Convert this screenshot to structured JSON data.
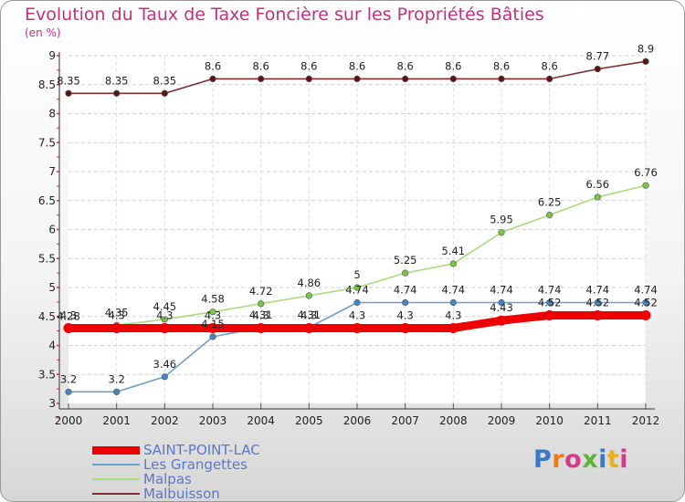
{
  "title": "Evolution du Taux de Taxe Foncière sur les Propriétés Bâties",
  "unit_label": "(en %)",
  "brand": "Proxiti",
  "brand_colors": [
    "#3a78c8",
    "#f07a1a",
    "#d63a8a",
    "#5ab43c",
    "#3a78c8",
    "#e8b020",
    "#d63a8a"
  ],
  "chart_data": {
    "type": "line",
    "title": "Evolution du Taux de Taxe Foncière sur les Propriétés Bâties",
    "ylabel": "(en %)",
    "xlabel": "",
    "x": [
      "2000",
      "2001",
      "2002",
      "2003",
      "2004",
      "2005",
      "2006",
      "2007",
      "2008",
      "2009",
      "2010",
      "2011",
      "2012"
    ],
    "ylim": [
      3,
      9
    ],
    "yticks": [
      "3",
      "3.5",
      "4",
      "4.5",
      "5",
      "5.5",
      "6",
      "6.5",
      "7",
      "7.5",
      "8",
      "8.5",
      "9"
    ],
    "grid": true,
    "series": [
      {
        "name": "SAINT-POINT-LAC",
        "color": "#ee0000",
        "values": [
          4.3,
          4.3,
          4.3,
          4.3,
          4.3,
          4.3,
          4.3,
          4.3,
          4.3,
          4.43,
          4.52,
          4.52,
          4.52
        ],
        "labels": [
          "4.3",
          "4.3",
          "4.3",
          "4.3",
          "4.3",
          "4.3",
          "4.3",
          "4.3",
          "4.3",
          "4.43",
          "4.52",
          "4.52",
          "4.52"
        ]
      },
      {
        "name": "Les Grangettes",
        "color": "#6f9fcf",
        "values": [
          3.2,
          3.2,
          3.46,
          4.15,
          4.31,
          4.31,
          4.74,
          4.74,
          4.74,
          4.74,
          4.74,
          4.74,
          4.74
        ],
        "labels": [
          "3.2",
          "3.2",
          "3.46",
          "4.15",
          "4.31",
          "4.31",
          "4.74",
          "4.74",
          "4.74",
          "4.74",
          "4.74",
          "4.74",
          "4.74"
        ]
      },
      {
        "name": "Malpas",
        "color": "#a8dc7e",
        "values": [
          4.28,
          4.35,
          4.45,
          4.58,
          4.72,
          4.86,
          5.0,
          5.25,
          5.41,
          5.95,
          6.25,
          6.56,
          6.76
        ],
        "labels": [
          "4.28",
          "4.35",
          "4.45",
          "4.58",
          "4.72",
          "4.86",
          "5",
          "5.25",
          "5.41",
          "5.95",
          "6.25",
          "6.56",
          "6.76"
        ]
      },
      {
        "name": "Malbuisson",
        "color": "#7a2e2e",
        "values": [
          8.35,
          8.35,
          8.35,
          8.6,
          8.6,
          8.6,
          8.6,
          8.6,
          8.6,
          8.6,
          8.6,
          8.77,
          8.9
        ],
        "labels": [
          "8.35",
          "8.35",
          "8.35",
          "8.6",
          "8.6",
          "8.6",
          "8.6",
          "8.6",
          "8.6",
          "8.6",
          "8.6",
          "8.77",
          "8.9"
        ]
      }
    ],
    "legend": "bottom-left"
  }
}
